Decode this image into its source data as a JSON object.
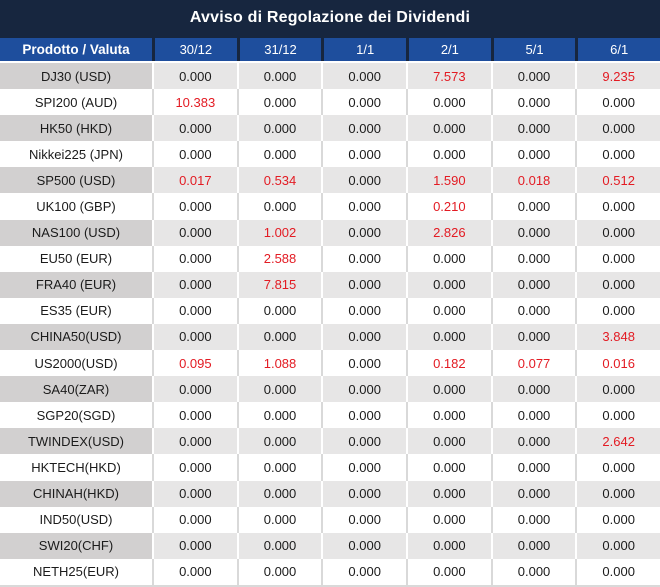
{
  "title": "Avviso di Regolazione dei Dividendi",
  "table": {
    "columns": [
      "Prodotto / Valuta",
      "30/12",
      "31/12",
      "1/1",
      "2/1",
      "5/1",
      "6/1"
    ],
    "rows": [
      {
        "product": "DJ30 (USD)",
        "values": [
          "0.000",
          "0.000",
          "0.000",
          "7.573",
          "0.000",
          "9.235"
        ]
      },
      {
        "product": "SPI200 (AUD)",
        "values": [
          "10.383",
          "0.000",
          "0.000",
          "0.000",
          "0.000",
          "0.000"
        ]
      },
      {
        "product": "HK50 (HKD)",
        "values": [
          "0.000",
          "0.000",
          "0.000",
          "0.000",
          "0.000",
          "0.000"
        ]
      },
      {
        "product": "Nikkei225 (JPN)",
        "values": [
          "0.000",
          "0.000",
          "0.000",
          "0.000",
          "0.000",
          "0.000"
        ]
      },
      {
        "product": "SP500 (USD)",
        "values": [
          "0.017",
          "0.534",
          "0.000",
          "1.590",
          "0.018",
          "0.512"
        ]
      },
      {
        "product": "UK100 (GBP)",
        "values": [
          "0.000",
          "0.000",
          "0.000",
          "0.210",
          "0.000",
          "0.000"
        ]
      },
      {
        "product": "NAS100 (USD)",
        "values": [
          "0.000",
          "1.002",
          "0.000",
          "2.826",
          "0.000",
          "0.000"
        ]
      },
      {
        "product": "EU50 (EUR)",
        "values": [
          "0.000",
          "2.588",
          "0.000",
          "0.000",
          "0.000",
          "0.000"
        ]
      },
      {
        "product": "FRA40 (EUR)",
        "values": [
          "0.000",
          "7.815",
          "0.000",
          "0.000",
          "0.000",
          "0.000"
        ]
      },
      {
        "product": "ES35 (EUR)",
        "values": [
          "0.000",
          "0.000",
          "0.000",
          "0.000",
          "0.000",
          "0.000"
        ]
      },
      {
        "product": "CHINA50(USD)",
        "values": [
          "0.000",
          "0.000",
          "0.000",
          "0.000",
          "0.000",
          "3.848"
        ]
      },
      {
        "product": "US2000(USD)",
        "values": [
          "0.095",
          "1.088",
          "0.000",
          "0.182",
          "0.077",
          "0.016"
        ]
      },
      {
        "product": "SA40(ZAR)",
        "values": [
          "0.000",
          "0.000",
          "0.000",
          "0.000",
          "0.000",
          "0.000"
        ]
      },
      {
        "product": "SGP20(SGD)",
        "values": [
          "0.000",
          "0.000",
          "0.000",
          "0.000",
          "0.000",
          "0.000"
        ]
      },
      {
        "product": "TWINDEX(USD)",
        "values": [
          "0.000",
          "0.000",
          "0.000",
          "0.000",
          "0.000",
          "2.642"
        ]
      },
      {
        "product": "HKTECH(HKD)",
        "values": [
          "0.000",
          "0.000",
          "0.000",
          "0.000",
          "0.000",
          "0.000"
        ]
      },
      {
        "product": "CHINAH(HKD)",
        "values": [
          "0.000",
          "0.000",
          "0.000",
          "0.000",
          "0.000",
          "0.000"
        ]
      },
      {
        "product": "IND50(USD)",
        "values": [
          "0.000",
          "0.000",
          "0.000",
          "0.000",
          "0.000",
          "0.000"
        ]
      },
      {
        "product": "SWI20(CHF)",
        "values": [
          "0.000",
          "0.000",
          "0.000",
          "0.000",
          "0.000",
          "0.000"
        ]
      },
      {
        "product": "NETH25(EUR)",
        "values": [
          "0.000",
          "0.000",
          "0.000",
          "0.000",
          "0.000",
          "0.000"
        ]
      }
    ]
  },
  "colors": {
    "title_bg": "#17263f",
    "header_bg": "#1e4e9d",
    "gray_name_bg": "#d2d0d0",
    "gray_value_bg": "#e7e6e6",
    "white_sep": "#d9d9d9",
    "zero_text": "#1b1b1b",
    "nonzero_text": "#e31b23"
  }
}
